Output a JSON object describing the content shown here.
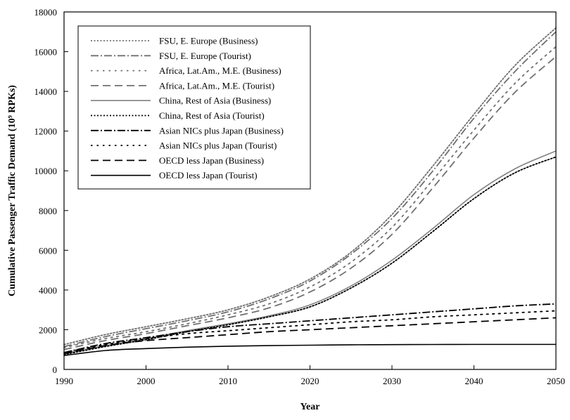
{
  "chart_data": {
    "type": "line",
    "title": "",
    "xlabel": "Year",
    "ylabel": "Cumulative Passenger Traffic Demand (10⁹ RPKs)",
    "xlim": [
      1990,
      2050
    ],
    "ylim": [
      0,
      18000
    ],
    "xticks": [
      1990,
      2000,
      2010,
      2020,
      2030,
      2040,
      2050
    ],
    "yticks": [
      0,
      2000,
      4000,
      6000,
      8000,
      10000,
      12000,
      14000,
      16000,
      18000
    ],
    "grid": false,
    "legend_position": "top-left",
    "x": [
      1990,
      1995,
      2000,
      2005,
      2010,
      2015,
      2020,
      2025,
      2030,
      2035,
      2040,
      2045,
      2050
    ],
    "series": [
      {
        "name": "FSU, E. Europe (Business)",
        "color": "#707070",
        "dash": "dotted",
        "values": [
          1250,
          1750,
          2150,
          2550,
          3000,
          3650,
          4550,
          5900,
          7800,
          10250,
          12850,
          15300,
          17200
        ]
      },
      {
        "name": "FSU, E. Europe (Tourist)",
        "color": "#707070",
        "dash": "dashdot",
        "values": [
          1150,
          1650,
          2050,
          2450,
          2900,
          3550,
          4450,
          5800,
          7600,
          10000,
          12650,
          15000,
          17000
        ]
      },
      {
        "name": "Africa, Lat.Am., M.E. (Business)",
        "color": "#707070",
        "dash": "sparse-dot",
        "values": [
          1100,
          1550,
          1900,
          2300,
          2750,
          3300,
          4150,
          5400,
          7150,
          9550,
          12050,
          14400,
          16250
        ]
      },
      {
        "name": "Africa, Lat.Am., M.E. (Tourist)",
        "color": "#707070",
        "dash": "longdash",
        "values": [
          1000,
          1450,
          1800,
          2200,
          2600,
          3100,
          3900,
          5100,
          6800,
          9150,
          11650,
          13950,
          15750
        ]
      },
      {
        "name": "China, Rest of Asia (Business)",
        "color": "#808080",
        "dash": "solid",
        "values": [
          800,
          1200,
          1550,
          1950,
          2300,
          2700,
          3250,
          4200,
          5500,
          7100,
          8800,
          10100,
          11000
        ]
      },
      {
        "name": "China, Rest of Asia (Tourist)",
        "color": "#000000",
        "dash": "dotted",
        "values": [
          750,
          1150,
          1500,
          1900,
          2250,
          2650,
          3150,
          4100,
          5350,
          6950,
          8600,
          9900,
          10700
        ]
      },
      {
        "name": "Asian NICs plus Japan (Business)",
        "color": "#000000",
        "dash": "dashdot",
        "values": [
          850,
          1300,
          1600,
          1900,
          2150,
          2300,
          2450,
          2600,
          2750,
          2900,
          3050,
          3200,
          3300
        ]
      },
      {
        "name": "Asian NICs plus Japan (Tourist)",
        "color": "#000000",
        "dash": "sparse-dot",
        "values": [
          850,
          1250,
          1550,
          1800,
          1950,
          2100,
          2250,
          2400,
          2500,
          2650,
          2750,
          2850,
          2950
        ]
      },
      {
        "name": "OECD less Japan (Business)",
        "color": "#000000",
        "dash": "longdash",
        "values": [
          800,
          1200,
          1450,
          1600,
          1750,
          1900,
          2000,
          2100,
          2200,
          2300,
          2400,
          2500,
          2600
        ]
      },
      {
        "name": "OECD less Japan (Tourist)",
        "color": "#000000",
        "dash": "solid",
        "values": [
          700,
          950,
          1050,
          1120,
          1170,
          1200,
          1220,
          1240,
          1250,
          1255,
          1260,
          1260,
          1260
        ]
      }
    ]
  }
}
